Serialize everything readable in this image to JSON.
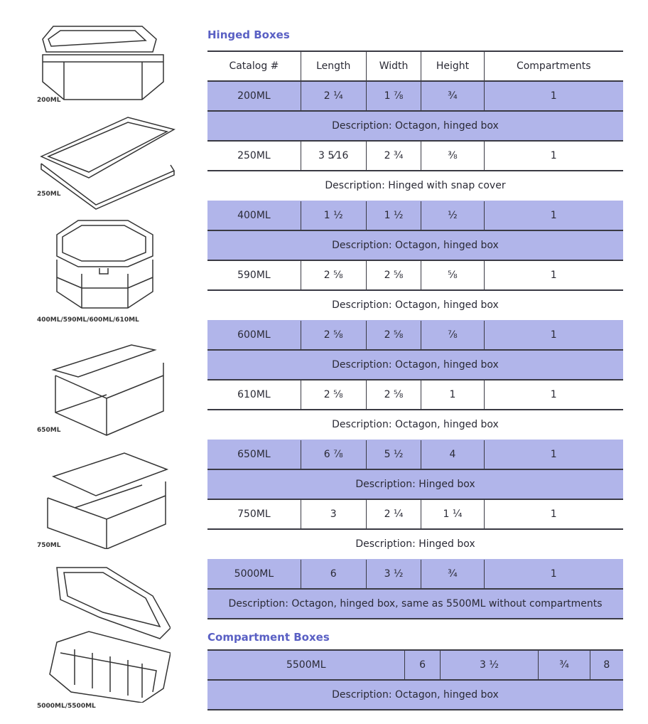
{
  "sections": {
    "hinged_title": "Hinged Boxes",
    "compartment_title": "Compartment Boxes"
  },
  "columns": [
    "Catalog #",
    "Length",
    "Width",
    "Height",
    "Compartments"
  ],
  "hinged_products": [
    {
      "catalog": "200ML",
      "length": "2 ¼",
      "width": "1 ⅞",
      "height": "¾",
      "compartments": "1",
      "description": "Description: Octagon, hinged box",
      "shaded": true
    },
    {
      "catalog": "250ML",
      "length": "3 5⁄16",
      "width": "2 ¾",
      "height": "⅜",
      "compartments": "1",
      "description": "Description: Hinged with snap cover",
      "shaded": false
    },
    {
      "catalog": "400ML",
      "length": "1 ½",
      "width": "1 ½",
      "height": "½",
      "compartments": "1",
      "description": "Description: Octagon, hinged box",
      "shaded": true
    },
    {
      "catalog": "590ML",
      "length": "2 ⅝",
      "width": "2 ⅝",
      "height": "⅝",
      "compartments": "1",
      "description": "Description: Octagon, hinged box",
      "shaded": false
    },
    {
      "catalog": "600ML",
      "length": "2 ⅝",
      "width": "2 ⅝",
      "height": "⅞",
      "compartments": "1",
      "description": "Description: Octagon, hinged box",
      "shaded": true
    },
    {
      "catalog": "610ML",
      "length": "2 ⅝",
      "width": "2 ⅝",
      "height": "1",
      "compartments": "1",
      "description": "Description: Octagon, hinged box",
      "shaded": false
    },
    {
      "catalog": "650ML",
      "length": "6 ⅞",
      "width": "5 ½",
      "height": "4",
      "compartments": "1",
      "description": "Description: Hinged box",
      "shaded": true
    },
    {
      "catalog": "750ML",
      "length": "3",
      "width": "2 ¼",
      "height": "1 ¼",
      "compartments": "1",
      "description": "Description: Hinged box",
      "shaded": false
    },
    {
      "catalog": "5000ML",
      "length": "6",
      "width": "3 ½",
      "height": "¾",
      "compartments": "1",
      "description": "Description: Octagon, hinged box, same as 5500ML without compartments",
      "shaded": true
    }
  ],
  "compartment_products": [
    {
      "catalog": "5500ML",
      "length": "6",
      "width": "3 ½",
      "height": "¾",
      "compartments": "8",
      "description": "Description: Octagon, hinged box",
      "shaded": true
    }
  ],
  "images": [
    {
      "caption": "200ML",
      "icon": "octagon-hinged-box-closed"
    },
    {
      "caption": "250ML",
      "icon": "flat-snap-cover-box"
    },
    {
      "caption": "400ML/590ML/600ML/610ML",
      "icon": "octagon-box"
    },
    {
      "caption": "650ML",
      "icon": "open-hinged-box"
    },
    {
      "caption": "750ML",
      "icon": "open-hinged-box"
    },
    {
      "caption": "5000ML/5500ML",
      "icon": "open-compartment-box"
    }
  ],
  "colors": {
    "row_shade": "#b1b5ea",
    "heading": "#5a60c4",
    "rule": "#3a3a44"
  }
}
